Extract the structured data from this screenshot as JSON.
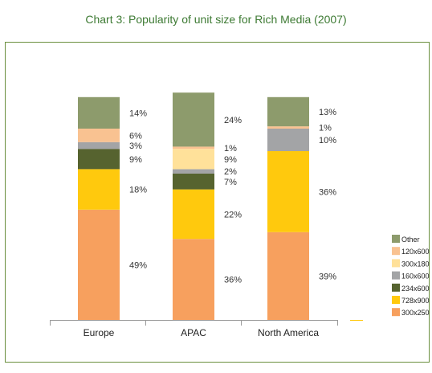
{
  "chart_data": {
    "type": "bar",
    "stacked": true,
    "percent": true,
    "title": "Chart 3: Popularity of unit size for Rich Media (2007)",
    "xlabel": "",
    "ylabel": "",
    "ylim": [
      0,
      100
    ],
    "grid": false,
    "legend_position": "right",
    "categories": [
      "Europe",
      "APAC",
      "North America"
    ],
    "series": [
      {
        "name": "300x250",
        "color": "#f7a05e",
        "values": [
          49,
          36,
          39
        ],
        "labels": [
          "49%",
          "36%",
          "39%"
        ]
      },
      {
        "name": "728x900",
        "color": "#ffc90d",
        "values": [
          18,
          22,
          36
        ],
        "labels": [
          "18%",
          "22%",
          "36%"
        ]
      },
      {
        "name": "234x600",
        "color": "#56632f",
        "values": [
          9,
          7,
          0
        ],
        "labels": [
          "9%",
          "7%",
          ""
        ]
      },
      {
        "name": "160x600",
        "color": "#a3a4a6",
        "values": [
          3,
          2,
          10
        ],
        "labels": [
          "3%",
          "2%",
          "10%"
        ]
      },
      {
        "name": "300x180",
        "color": "#ffe19a",
        "values": [
          0,
          9,
          0
        ],
        "labels": [
          "",
          "9%",
          ""
        ]
      },
      {
        "name": "120x600",
        "color": "#f9c291",
        "values": [
          6,
          1,
          1
        ],
        "labels": [
          "6%",
          "1%",
          "1%"
        ]
      },
      {
        "name": "Other",
        "color": "#8d9b6c",
        "values": [
          14,
          24,
          13
        ],
        "labels": [
          "14%",
          "24%",
          "13%"
        ]
      }
    ]
  }
}
